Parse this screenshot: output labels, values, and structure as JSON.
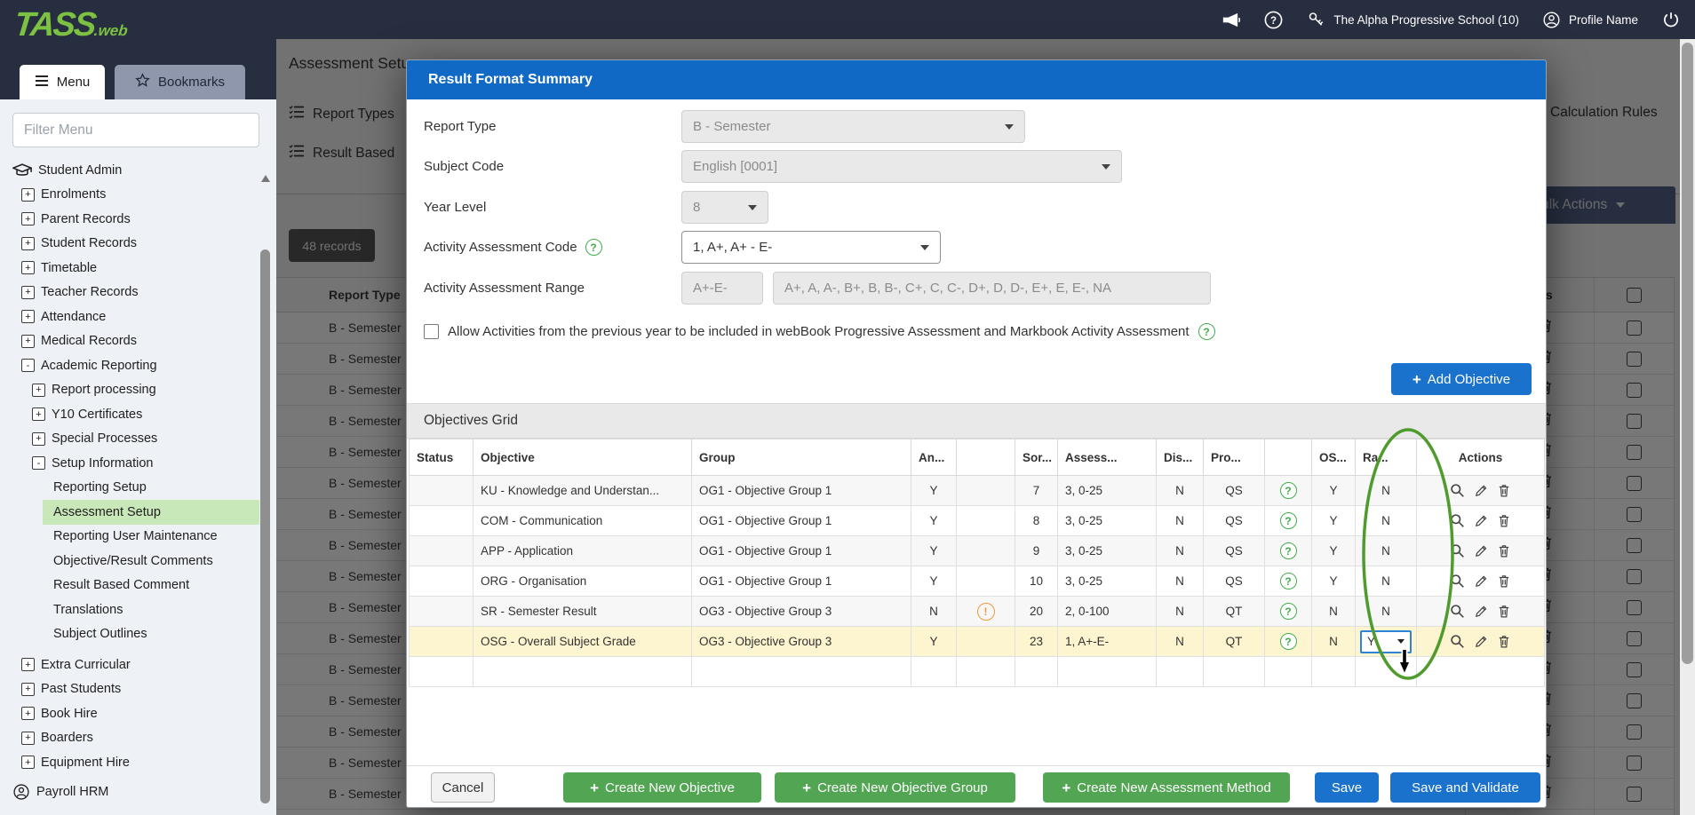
{
  "topbar": {
    "logo_main": "TASS",
    "logo_suffix": ".web",
    "school": "The Alpha Progressive School (10)",
    "profile": "Profile Name"
  },
  "sidebar": {
    "menu_tab": "Menu",
    "bookmarks_tab": "Bookmarks",
    "filter_placeholder": "Filter Menu",
    "items": [
      {
        "label": "Student Admin",
        "level": 0,
        "icon": "grad-cap"
      },
      {
        "label": "Enrolments",
        "level": 1,
        "expand": "+"
      },
      {
        "label": "Parent Records",
        "level": 1,
        "expand": "+"
      },
      {
        "label": "Student Records",
        "level": 1,
        "expand": "+"
      },
      {
        "label": "Timetable",
        "level": 1,
        "expand": "+"
      },
      {
        "label": "Teacher Records",
        "level": 1,
        "expand": "+"
      },
      {
        "label": "Attendance",
        "level": 1,
        "expand": "+"
      },
      {
        "label": "Medical Records",
        "level": 1,
        "expand": "+"
      },
      {
        "label": "Academic Reporting",
        "level": 1,
        "expand": "-"
      },
      {
        "label": "Report processing",
        "level": 2,
        "expand": "+"
      },
      {
        "label": "Y10 Certificates",
        "level": 2,
        "expand": "+"
      },
      {
        "label": "Special Processes",
        "level": 2,
        "expand": "+"
      },
      {
        "label": "Setup Information",
        "level": 2,
        "expand": "-"
      },
      {
        "label": "Reporting Setup",
        "level": 3
      },
      {
        "label": "Assessment Setup",
        "level": 3,
        "active": true
      },
      {
        "label": "Reporting User Maintenance",
        "level": 3
      },
      {
        "label": "Objective/Result Comments",
        "level": 3
      },
      {
        "label": "Result Based Comment",
        "level": 3
      },
      {
        "label": "Translations",
        "level": 3
      },
      {
        "label": "Subject Outlines",
        "level": 3
      },
      {
        "label": "Extra Curricular",
        "level": 1,
        "expand": "+",
        "gap_before": 7
      },
      {
        "label": "Past Students",
        "level": 1,
        "expand": "+"
      },
      {
        "label": "Book Hire",
        "level": 1,
        "expand": "+"
      },
      {
        "label": "Boarders",
        "level": 1,
        "expand": "+"
      },
      {
        "label": "Equipment Hire",
        "level": 1,
        "expand": "+"
      },
      {
        "label": "Payroll HRM",
        "level": 0,
        "icon": "person",
        "gap_before": 6
      }
    ]
  },
  "background": {
    "title": "Assessment Setup",
    "tab_report_types": "Report Types",
    "tab_result_based": "Result Based",
    "tab_calculation_rules": "Calculation Rules",
    "bulk_actions": "Bulk Actions",
    "records_badge": "48 records",
    "col_report_type": "Report Type",
    "col_actions": "Actions",
    "row_label": "B - Semester",
    "row_count": 17
  },
  "modal": {
    "title": "Result Format Summary",
    "report_type": {
      "label": "Report Type",
      "value": "B - Semester"
    },
    "subject_code": {
      "label": "Subject Code",
      "value": "English [0001]"
    },
    "year_level": {
      "label": "Year Level",
      "value": "8"
    },
    "activity_code": {
      "label": "Activity Assessment Code",
      "value": "1, A+, A+ - E-"
    },
    "activity_range": {
      "label": "Activity Assessment Range",
      "value_short": "A+-E-",
      "value_long": "A+, A, A-, B+, B, B-, C+, C, C-, D+, D, D-, E+, E, E-, NA"
    },
    "allow_label": "Allow Activities from the previous year to be included in webBook Progressive Assessment and Markbook Activity Assessment",
    "add_objective": "Add Objective",
    "grid": {
      "title": "Objectives Grid",
      "columns": [
        "Status",
        "Objective",
        "Group",
        "An...",
        "",
        "Sor...",
        "Assess...",
        "Dis...",
        "Pro...",
        "",
        "OS...",
        "Ra...",
        "Actions"
      ],
      "rows": [
        {
          "objective": "KU - Knowledge and Understan...",
          "group": "OG1 - Objective Group 1",
          "an": "Y",
          "warn": false,
          "sort": "7",
          "assess": "3, 0-25",
          "dis": "N",
          "pro": "QS",
          "os": "Y",
          "ra": "N"
        },
        {
          "objective": "COM - Communication",
          "group": "OG1 - Objective Group 1",
          "an": "Y",
          "warn": false,
          "sort": "8",
          "assess": "3, 0-25",
          "dis": "N",
          "pro": "QS",
          "os": "Y",
          "ra": "N"
        },
        {
          "objective": "APP - Application",
          "group": "OG1 - Objective Group 1",
          "an": "Y",
          "warn": false,
          "sort": "9",
          "assess": "3, 0-25",
          "dis": "N",
          "pro": "QS",
          "os": "Y",
          "ra": "N"
        },
        {
          "objective": "ORG - Organisation",
          "group": "OG1 - Objective Group 1",
          "an": "Y",
          "warn": false,
          "sort": "10",
          "assess": "3, 0-25",
          "dis": "N",
          "pro": "QS",
          "os": "Y",
          "ra": "N"
        },
        {
          "objective": "SR - Semester Result",
          "group": "OG3 - Objective Group 3",
          "an": "N",
          "warn": true,
          "sort": "20",
          "assess": "2, 0-100",
          "dis": "N",
          "pro": "QT",
          "os": "N",
          "ra": "N"
        },
        {
          "objective": "OSG - Overall Subject Grade",
          "group": "OG3 - Objective Group 3",
          "an": "Y",
          "warn": false,
          "sort": "23",
          "assess": "1, A+-E-",
          "dis": "N",
          "pro": "QT",
          "os": "N",
          "ra": "Y",
          "ra_select": true,
          "highlight": true
        }
      ]
    },
    "footer": {
      "cancel": "Cancel",
      "create_objective": "Create New Objective",
      "create_group": "Create New Objective Group",
      "create_method": "Create New Assessment Method",
      "save": "Save",
      "save_validate": "Save and Validate"
    }
  },
  "colors": {
    "topbar_navy": "#272e40",
    "tass_green": "#7cc142",
    "modal_header_blue": "#1169c6",
    "accent_blue": "#1a72cd",
    "green_button": "#52a552",
    "highlight_row": "#fdf5cf",
    "active_nav_green": "#c9e8b9",
    "annotation_green": "#4f9b2d"
  }
}
